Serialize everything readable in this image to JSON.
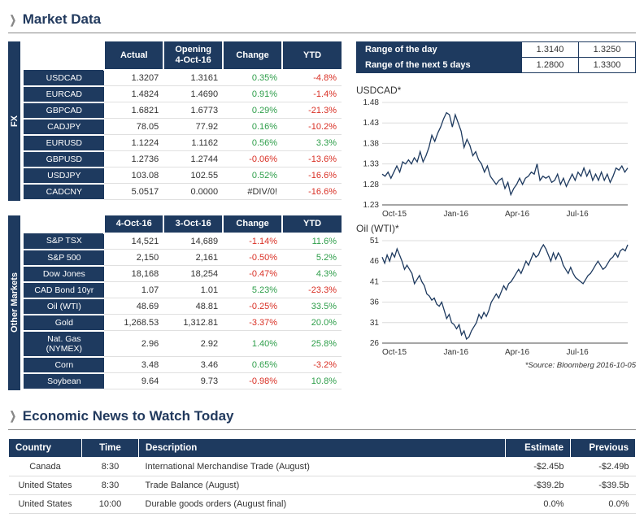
{
  "titles": {
    "market_data": "Market Data",
    "econ_news": "Economic News to Watch Today"
  },
  "colors": {
    "header_bg": "#1e3a5f",
    "pos": "#2e9e4a",
    "neg": "#d93025",
    "grid": "#dcdcdc",
    "axis": "#888",
    "line": "#1e3a5f"
  },
  "fx": {
    "vlabel": "FX",
    "columns": [
      "Actual",
      "Opening\n4-Oct-16",
      "Change",
      "YTD"
    ],
    "rows": [
      {
        "label": "USDCAD",
        "actual": "1.3207",
        "opening": "1.3161",
        "change": "0.35%",
        "change_sign": 1,
        "ytd": "-4.8%",
        "ytd_sign": -1
      },
      {
        "label": "EURCAD",
        "actual": "1.4824",
        "opening": "1.4690",
        "change": "0.91%",
        "change_sign": 1,
        "ytd": "-1.4%",
        "ytd_sign": -1
      },
      {
        "label": "GBPCAD",
        "actual": "1.6821",
        "opening": "1.6773",
        "change": "0.29%",
        "change_sign": 1,
        "ytd": "-21.3%",
        "ytd_sign": -1
      },
      {
        "label": "CADJPY",
        "actual": "78.05",
        "opening": "77.92",
        "change": "0.16%",
        "change_sign": 1,
        "ytd": "-10.2%",
        "ytd_sign": -1
      },
      {
        "label": "EURUSD",
        "actual": "1.1224",
        "opening": "1.1162",
        "change": "0.56%",
        "change_sign": 1,
        "ytd": "3.3%",
        "ytd_sign": 1
      },
      {
        "label": "GBPUSD",
        "actual": "1.2736",
        "opening": "1.2744",
        "change": "-0.06%",
        "change_sign": -1,
        "ytd": "-13.6%",
        "ytd_sign": -1
      },
      {
        "label": "USDJPY",
        "actual": "103.08",
        "opening": "102.55",
        "change": "0.52%",
        "change_sign": 1,
        "ytd": "-16.6%",
        "ytd_sign": -1
      },
      {
        "label": "CADCNY",
        "actual": "5.0517",
        "opening": "0.0000",
        "change": "#DIV/0!",
        "change_sign": 0,
        "ytd": "-16.6%",
        "ytd_sign": -1
      }
    ]
  },
  "other": {
    "vlabel": "Other Markets",
    "columns": [
      "4-Oct-16",
      "3-Oct-16",
      "Change",
      "YTD"
    ],
    "rows": [
      {
        "label": "S&P TSX",
        "c1": "14,521",
        "c2": "14,689",
        "change": "-1.14%",
        "change_sign": -1,
        "ytd": "11.6%",
        "ytd_sign": 1
      },
      {
        "label": "S&P 500",
        "c1": "2,150",
        "c2": "2,161",
        "change": "-0.50%",
        "change_sign": -1,
        "ytd": "5.2%",
        "ytd_sign": 1
      },
      {
        "label": "Dow Jones",
        "c1": "18,168",
        "c2": "18,254",
        "change": "-0.47%",
        "change_sign": -1,
        "ytd": "4.3%",
        "ytd_sign": 1
      },
      {
        "label": "CAD Bond 10yr",
        "c1": "1.07",
        "c2": "1.01",
        "change": "5.23%",
        "change_sign": 1,
        "ytd": "-23.3%",
        "ytd_sign": -1
      },
      {
        "label": "Oil (WTI)",
        "c1": "48.69",
        "c2": "48.81",
        "change": "-0.25%",
        "change_sign": -1,
        "ytd": "33.5%",
        "ytd_sign": 1
      },
      {
        "label": "Gold",
        "c1": "1,268.53",
        "c2": "1,312.81",
        "change": "-3.37%",
        "change_sign": -1,
        "ytd": "20.0%",
        "ytd_sign": 1
      },
      {
        "label": "Nat. Gas (NYMEX)",
        "c1": "2.96",
        "c2": "2.92",
        "change": "1.40%",
        "change_sign": 1,
        "ytd": "25.8%",
        "ytd_sign": 1
      },
      {
        "label": "Corn",
        "c1": "3.48",
        "c2": "3.46",
        "change": "0.65%",
        "change_sign": 1,
        "ytd": "-3.2%",
        "ytd_sign": -1
      },
      {
        "label": "Soybean",
        "c1": "9.64",
        "c2": "9.73",
        "change": "-0.98%",
        "change_sign": -1,
        "ytd": "10.8%",
        "ytd_sign": 1
      }
    ]
  },
  "ranges": [
    {
      "label": "Range of the day",
      "low": "1.3140",
      "high": "1.3250"
    },
    {
      "label": "Range of the next 5 days",
      "low": "1.2800",
      "high": "1.3300"
    }
  ],
  "chart1": {
    "title": "USDCAD*",
    "y": {
      "min": 1.23,
      "max": 1.48,
      "ticks": [
        1.23,
        1.28,
        1.33,
        1.38,
        1.43,
        1.48
      ]
    },
    "x_labels": [
      "Oct-15",
      "Jan-16",
      "Apr-16",
      "Jul-16"
    ],
    "series": [
      1.305,
      1.3,
      1.31,
      1.295,
      1.31,
      1.325,
      1.31,
      1.335,
      1.33,
      1.34,
      1.33,
      1.345,
      1.335,
      1.36,
      1.335,
      1.35,
      1.37,
      1.4,
      1.385,
      1.405,
      1.42,
      1.44,
      1.455,
      1.45,
      1.42,
      1.45,
      1.43,
      1.41,
      1.37,
      1.39,
      1.375,
      1.35,
      1.36,
      1.34,
      1.33,
      1.31,
      1.325,
      1.3,
      1.29,
      1.28,
      1.29,
      1.295,
      1.27,
      1.285,
      1.255,
      1.27,
      1.28,
      1.295,
      1.28,
      1.295,
      1.3,
      1.31,
      1.305,
      1.33,
      1.29,
      1.3,
      1.295,
      1.3,
      1.285,
      1.29,
      1.305,
      1.28,
      1.295,
      1.275,
      1.29,
      1.305,
      1.29,
      1.31,
      1.3,
      1.32,
      1.3,
      1.315,
      1.29,
      1.305,
      1.29,
      1.31,
      1.29,
      1.305,
      1.285,
      1.3,
      1.32,
      1.315,
      1.325,
      1.31,
      1.32
    ]
  },
  "chart2": {
    "title": "Oil (WTI)*",
    "y": {
      "min": 26,
      "max": 51,
      "ticks": [
        26,
        31,
        36,
        41,
        46,
        51
      ]
    },
    "x_labels": [
      "Oct-15",
      "Jan-16",
      "Apr-16",
      "Jul-16"
    ],
    "series": [
      47,
      45.5,
      47.5,
      46,
      48,
      47,
      49,
      47.5,
      46,
      44,
      45,
      44,
      43,
      40.5,
      41.5,
      42.5,
      41,
      40,
      38,
      37.5,
      36.5,
      37,
      35.5,
      35,
      36,
      34,
      32,
      33,
      31,
      30.5,
      29.5,
      30.5,
      28,
      29,
      27,
      27.5,
      29,
      30,
      31,
      33,
      32,
      33.5,
      32.5,
      34,
      36,
      37,
      38,
      37,
      38.5,
      40,
      39,
      40.5,
      41,
      42,
      43,
      44,
      43,
      44.5,
      46,
      45,
      46.5,
      48,
      47,
      47.5,
      49,
      50,
      49,
      47.5,
      46,
      48,
      46.5,
      48,
      47,
      45,
      44,
      43,
      44.5,
      43,
      42,
      41.5,
      41,
      40.5,
      41.5,
      42.5,
      43,
      44,
      45,
      46,
      45,
      44,
      44.5,
      45.5,
      46.5,
      47,
      48,
      47,
      48.5,
      49,
      48.5,
      50
    ]
  },
  "source": "*Source: Bloomberg  2016-10-05",
  "econ": {
    "columns": [
      "Country",
      "Time",
      "Description",
      "Estimate",
      "Previous"
    ],
    "rows": [
      {
        "country": "Canada",
        "time": "8:30",
        "desc": "International Merchandise Trade (August)",
        "est": "-$2.45b",
        "prev": "-$2.49b"
      },
      {
        "country": "United States",
        "time": "8:30",
        "desc": "Trade Balance (August)",
        "est": "-$39.2b",
        "prev": "-$39.5b"
      },
      {
        "country": "United States",
        "time": "10:00",
        "desc": "Durable goods orders (August final)",
        "est": "0.0%",
        "prev": "0.0%"
      }
    ]
  }
}
